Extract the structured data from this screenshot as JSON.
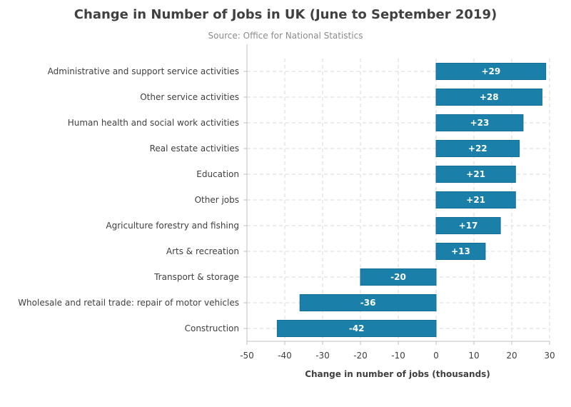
{
  "chart_data": {
    "type": "bar",
    "orientation": "horizontal",
    "title": "Change in Number of Jobs in UK (June to September 2019)",
    "subtitle": "Source: Office for National Statistics",
    "xlabel": "Change in number of jobs (thousands)",
    "ylabel": "",
    "xlim": [
      -50,
      30
    ],
    "xticks": [
      -50,
      -40,
      -30,
      -20,
      -10,
      0,
      10,
      20,
      30
    ],
    "grid": true,
    "bar_color": "#1a80aa",
    "categories": [
      "Administrative and support service activities",
      "Other service activities",
      "Human health and social work activities",
      "Real estate activities",
      "Education",
      "Other jobs",
      "Agriculture forestry and fishing",
      "Arts & recreation",
      "Transport & storage",
      "Wholesale and retail trade: repair of motor vehicles",
      "Construction"
    ],
    "values": [
      29,
      28,
      23,
      22,
      21,
      21,
      17,
      13,
      -20,
      -36,
      -42
    ],
    "value_labels": [
      "+29",
      "+28",
      "+23",
      "+22",
      "+21",
      "+21",
      "+17",
      "+13",
      "-20",
      "-36",
      "-42"
    ]
  }
}
